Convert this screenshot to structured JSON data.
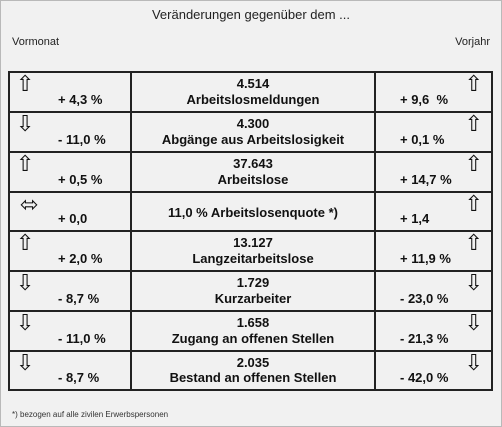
{
  "header": {
    "title": "Veränderungen gegenüber dem ...",
    "left_label": "Vormonat",
    "right_label": "Vorjahr"
  },
  "rows": [
    {
      "left_icon": "arrow-up-icon",
      "left_value": "+ 4,3 %",
      "number": "4.514",
      "label": "Arbeitslosmeldungen",
      "right_icon": "arrow-up-icon",
      "right_value": "+ 9,6  %"
    },
    {
      "left_icon": "arrow-down-icon",
      "left_value": "- 11,0 %",
      "number": "4.300",
      "label": "Abgänge aus Arbeitslosigkeit",
      "right_icon": "arrow-up-icon",
      "right_value": "+ 0,1 %"
    },
    {
      "left_icon": "arrow-up-icon",
      "left_value": "+ 0,5 %",
      "number": "37.643",
      "label": "Arbeitslose",
      "right_icon": "arrow-up-icon",
      "right_value": "+ 14,7 %"
    },
    {
      "left_icon": "arrow-left-right-icon",
      "left_value": "+ 0,0",
      "number": "",
      "label": "11,0 % Arbeitslosenquote *)",
      "right_icon": "arrow-up-icon",
      "right_value": "+ 1,4"
    },
    {
      "left_icon": "arrow-up-icon",
      "left_value": "+ 2,0 %",
      "number": "13.127",
      "label": "Langzeitarbeitslose",
      "right_icon": "arrow-up-icon",
      "right_value": "+ 11,9 %"
    },
    {
      "left_icon": "arrow-down-icon",
      "left_value": "- 8,7 %",
      "number": "1.729",
      "label": "Kurzarbeiter",
      "right_icon": "arrow-down-icon",
      "right_value": "- 23,0 %"
    },
    {
      "left_icon": "arrow-down-icon",
      "left_value": "- 11,0 %",
      "number": "1.658",
      "label": "Zugang an offenen Stellen",
      "right_icon": "arrow-down-icon",
      "right_value": "- 21,3 %"
    },
    {
      "left_icon": "arrow-down-icon",
      "left_value": "- 8,7 %",
      "number": "2.035",
      "label": "Bestand an offenen Stellen",
      "right_icon": "arrow-down-icon",
      "right_value": "- 42,0 %"
    }
  ],
  "footnote": "*) bezogen auf alle zivilen Erwerbspersonen"
}
